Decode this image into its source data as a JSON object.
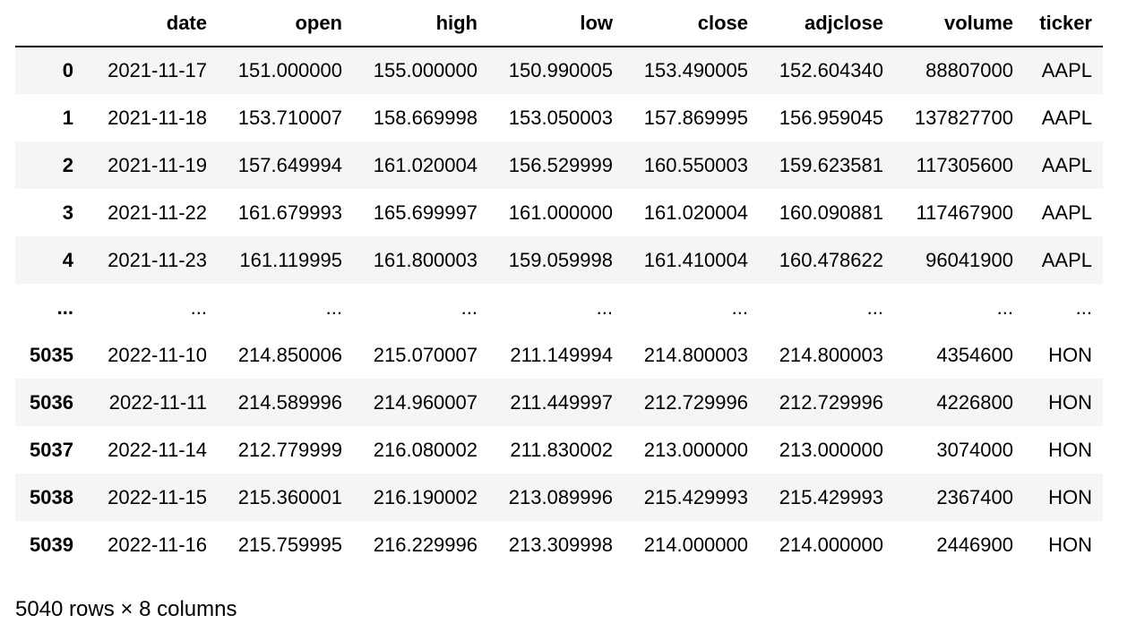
{
  "table": {
    "index_header": "",
    "columns": [
      "date",
      "open",
      "high",
      "low",
      "close",
      "adjclose",
      "volume",
      "ticker"
    ],
    "rows": [
      {
        "index": "0",
        "cells": [
          "2021-11-17",
          "151.000000",
          "155.000000",
          "150.990005",
          "153.490005",
          "152.604340",
          "88807000",
          "AAPL"
        ]
      },
      {
        "index": "1",
        "cells": [
          "2021-11-18",
          "153.710007",
          "158.669998",
          "153.050003",
          "157.869995",
          "156.959045",
          "137827700",
          "AAPL"
        ]
      },
      {
        "index": "2",
        "cells": [
          "2021-11-19",
          "157.649994",
          "161.020004",
          "156.529999",
          "160.550003",
          "159.623581",
          "117305600",
          "AAPL"
        ]
      },
      {
        "index": "3",
        "cells": [
          "2021-11-22",
          "161.679993",
          "165.699997",
          "161.000000",
          "161.020004",
          "160.090881",
          "117467900",
          "AAPL"
        ]
      },
      {
        "index": "4",
        "cells": [
          "2021-11-23",
          "161.119995",
          "161.800003",
          "159.059998",
          "161.410004",
          "160.478622",
          "96041900",
          "AAPL"
        ]
      },
      {
        "index": "...",
        "cells": [
          "...",
          "...",
          "...",
          "...",
          "...",
          "...",
          "...",
          "..."
        ]
      },
      {
        "index": "5035",
        "cells": [
          "2022-11-10",
          "214.850006",
          "215.070007",
          "211.149994",
          "214.800003",
          "214.800003",
          "4354600",
          "HON"
        ]
      },
      {
        "index": "5036",
        "cells": [
          "2022-11-11",
          "214.589996",
          "214.960007",
          "211.449997",
          "212.729996",
          "212.729996",
          "4226800",
          "HON"
        ]
      },
      {
        "index": "5037",
        "cells": [
          "2022-11-14",
          "212.779999",
          "216.080002",
          "211.830002",
          "213.000000",
          "213.000000",
          "3074000",
          "HON"
        ]
      },
      {
        "index": "5038",
        "cells": [
          "2022-11-15",
          "215.360001",
          "216.190002",
          "213.089996",
          "215.429993",
          "215.429993",
          "2367400",
          "HON"
        ]
      },
      {
        "index": "5039",
        "cells": [
          "2022-11-16",
          "215.759995",
          "216.229996",
          "213.309998",
          "214.000000",
          "214.000000",
          "2446900",
          "HON"
        ]
      }
    ]
  },
  "footer": {
    "shape_text": "5040 rows × 8 columns"
  },
  "colors": {
    "stripe": "#f5f5f5",
    "border": "#000000"
  }
}
